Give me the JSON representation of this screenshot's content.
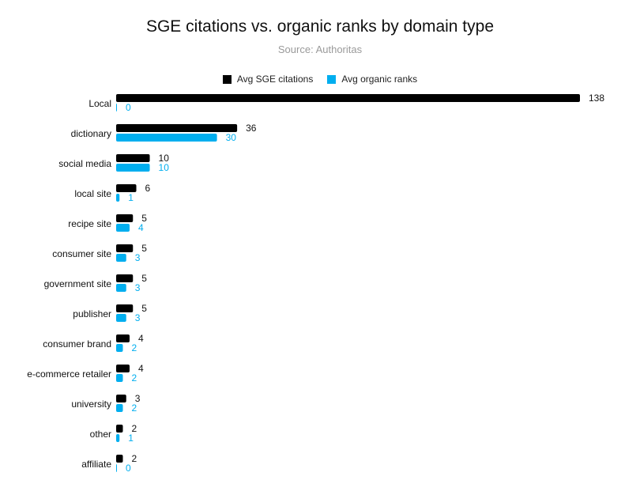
{
  "chart_data": {
    "type": "bar",
    "orientation": "horizontal",
    "title": "SGE citations vs. organic ranks by domain type",
    "subtitle": "Source: Authoritas",
    "legend_position": "top-center",
    "grid": false,
    "categories": [
      "Local",
      "dictionary",
      "social media",
      "local site",
      "recipe site",
      "consumer site",
      "government site",
      "publisher",
      "consumer brand",
      "e-commerce retailer",
      "university",
      "other",
      "affiliate"
    ],
    "series": [
      {
        "name": "Avg SGE citations",
        "color": "#000000",
        "values": [
          138,
          36,
          10,
          6,
          5,
          5,
          5,
          5,
          4,
          4,
          3,
          2,
          2
        ]
      },
      {
        "name": "Avg organic ranks",
        "color": "#00aeef",
        "values": [
          0,
          30,
          10,
          1,
          4,
          3,
          3,
          3,
          2,
          2,
          2,
          1,
          0
        ]
      }
    ],
    "xlim": [
      0,
      138
    ]
  }
}
